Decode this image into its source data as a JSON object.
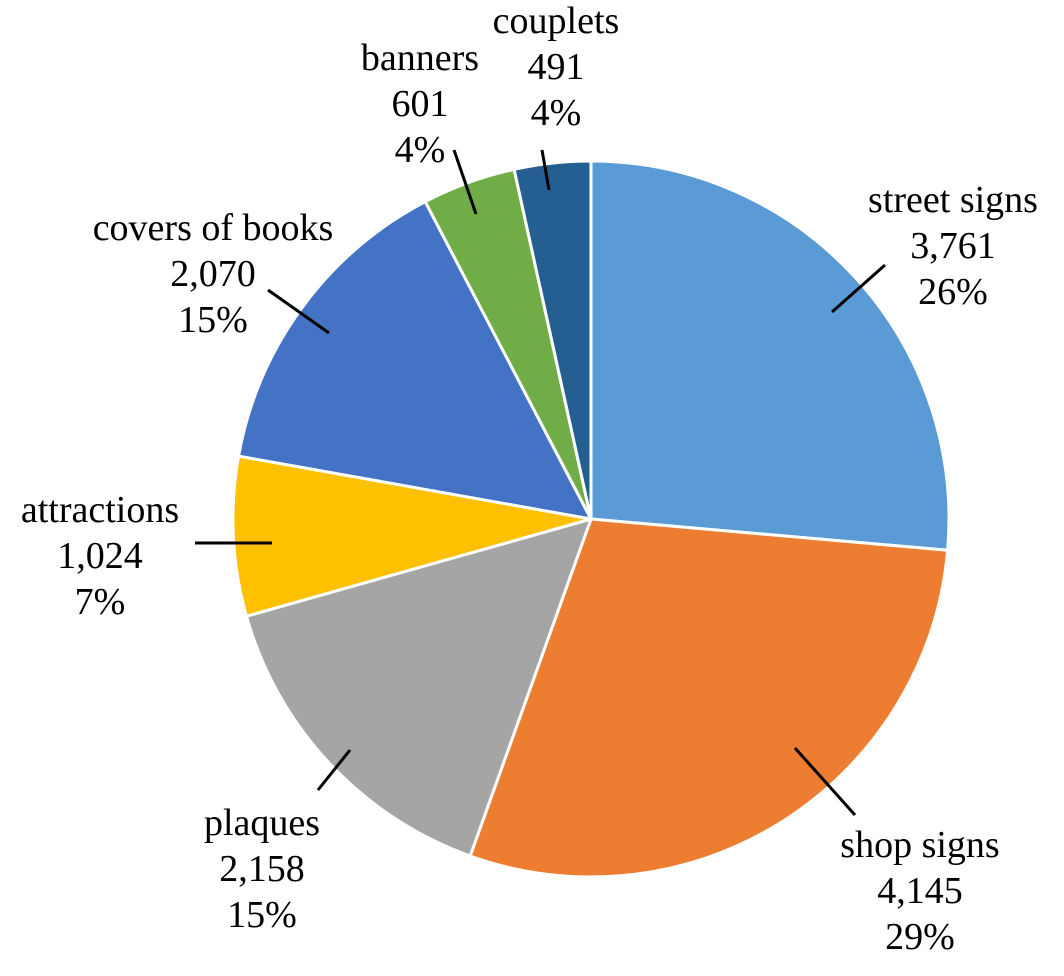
{
  "chart_data": {
    "type": "pie",
    "title": "",
    "start": "12 o'clock",
    "direction": "clockwise",
    "slices": [
      {
        "label": "street signs",
        "value": 3761,
        "value_text": "3,761",
        "percent_text": "26%",
        "color": "#5B9BD5"
      },
      {
        "label": "shop signs",
        "value": 4145,
        "value_text": "4,145",
        "percent_text": "29%",
        "color": "#ED7D31"
      },
      {
        "label": "plaques",
        "value": 2158,
        "value_text": "2,158",
        "percent_text": "15%",
        "color": "#A5A5A5"
      },
      {
        "label": "attractions",
        "value": 1024,
        "value_text": "1,024",
        "percent_text": "7%",
        "color": "#FFC000"
      },
      {
        "label": "covers of books",
        "value": 2070,
        "value_text": "2,070",
        "percent_text": "15%",
        "color": "#4472C4"
      },
      {
        "label": "banners",
        "value": 601,
        "value_text": "601",
        "percent_text": "4%",
        "color": "#70AD47"
      },
      {
        "label": "couplets",
        "value": 491,
        "value_text": "491",
        "percent_text": "4%",
        "color": "#255E91"
      }
    ]
  }
}
